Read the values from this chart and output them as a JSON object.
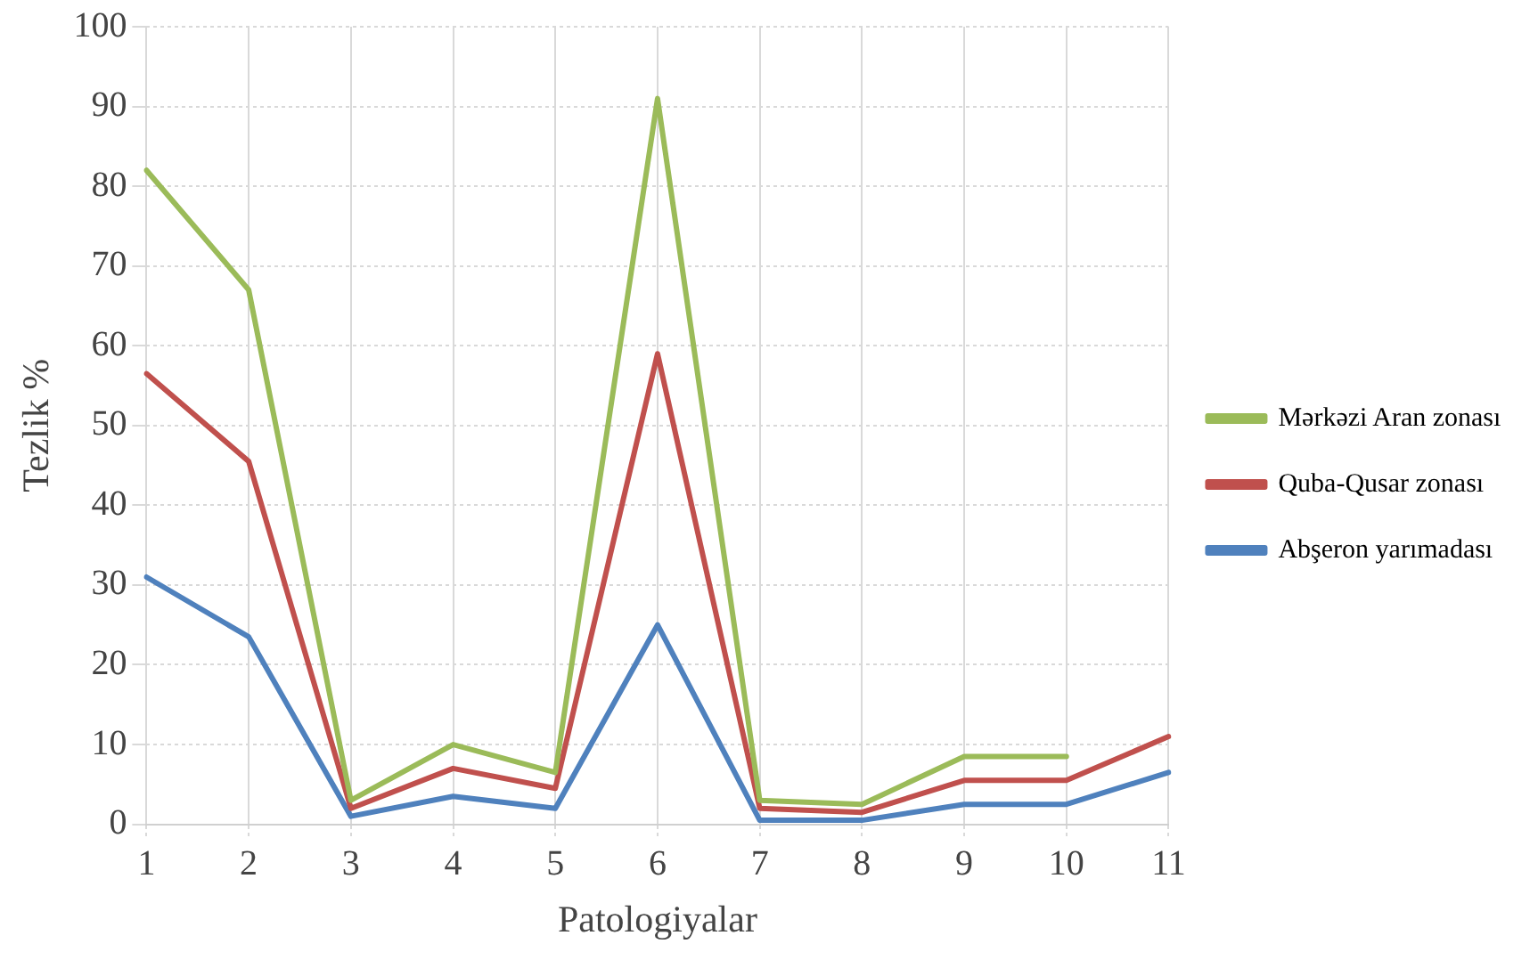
{
  "chart_data": {
    "type": "line",
    "xlabel": "Patologiyalar",
    "ylabel": "Tezlik %",
    "categories": [
      "1",
      "2",
      "3",
      "4",
      "5",
      "6",
      "7",
      "8",
      "9",
      "10",
      "11"
    ],
    "series": [
      {
        "name": "Mərkəzi Aran zonası",
        "color": "#9bbb59",
        "values": [
          82,
          67,
          3,
          10,
          6.5,
          91,
          3,
          2.5,
          8.5,
          8.5,
          null
        ]
      },
      {
        "name": "Quba-Qusar zonası",
        "color": "#c0504d",
        "values": [
          56.5,
          45.5,
          2,
          7,
          4.5,
          59,
          2,
          1.5,
          5.5,
          5.5,
          11
        ]
      },
      {
        "name": "Abşeron yarımadası",
        "color": "#4f81bd",
        "values": [
          31,
          23.5,
          1,
          3.5,
          2,
          25,
          0.5,
          0.5,
          2.5,
          2.5,
          6.5
        ]
      }
    ],
    "ylim": [
      0,
      100
    ],
    "yticks": [
      0,
      10,
      20,
      30,
      40,
      50,
      60,
      70,
      80,
      90,
      100
    ],
    "grid": true,
    "legend": "right",
    "marker": "none",
    "line_style": "solid"
  }
}
